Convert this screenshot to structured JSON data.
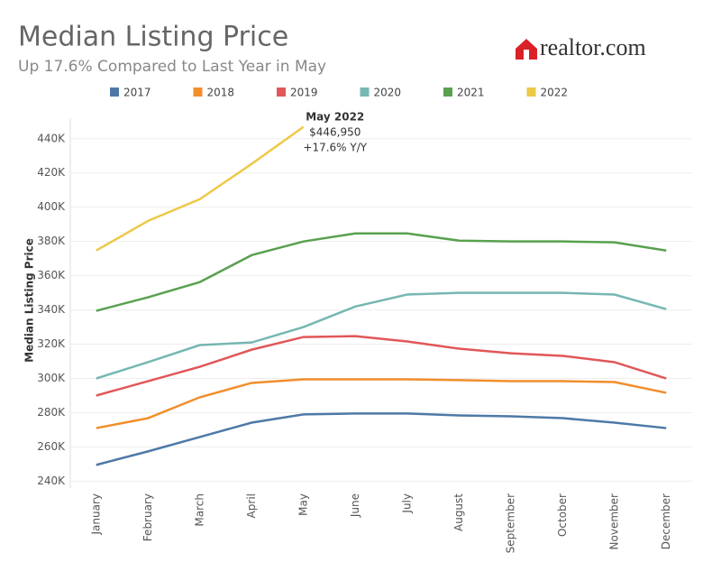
{
  "chart_data": {
    "type": "line",
    "title": "Median Listing Price",
    "subtitle": "Up 17.6% Compared to Last Year in May",
    "brand": "realtor.com",
    "y_label": "Median Listing Price",
    "categories": [
      "January",
      "February",
      "March",
      "April",
      "May",
      "June",
      "July",
      "August",
      "September",
      "October",
      "November",
      "December"
    ],
    "series": [
      {
        "name": "2017",
        "color": "#4e79a7",
        "values": [
          249500,
          257400,
          265800,
          274200,
          279000,
          279500,
          279500,
          278400,
          277900,
          276800,
          274200,
          271000
        ]
      },
      {
        "name": "2018",
        "color": "#f28e2b",
        "values": [
          271000,
          276800,
          289000,
          297400,
          299500,
          299500,
          299500,
          299000,
          298400,
          298400,
          297900,
          291600
        ]
      },
      {
        "name": "2019",
        "color": "#e15759",
        "values": [
          290000,
          298400,
          306800,
          316800,
          324200,
          324700,
          321600,
          317400,
          314700,
          313200,
          309500,
          300000
        ]
      },
      {
        "name": "2020",
        "color": "#76b7b2",
        "values": [
          300000,
          309500,
          319500,
          321000,
          330000,
          342000,
          349000,
          350000,
          350000,
          350000,
          349000,
          340500
        ]
      },
      {
        "name": "2021",
        "color": "#59a14f",
        "values": [
          339500,
          347400,
          356300,
          372000,
          380000,
          384700,
          384700,
          380500,
          380000,
          380000,
          379500,
          374700
        ]
      },
      {
        "name": "2022",
        "color": "#edc948",
        "values": [
          374700,
          392000,
          404700,
          425300,
          446950,
          null,
          null,
          null,
          null,
          null,
          null,
          null
        ]
      }
    ],
    "annotation": [
      "May 2022",
      "$446,950",
      "+17.6% Y/Y"
    ],
    "ylim": [
      236000,
      452000
    ],
    "yticks": [
      {
        "value": 240000,
        "label": "240K"
      },
      {
        "value": 260000,
        "label": "260K"
      },
      {
        "value": 280000,
        "label": "280K"
      },
      {
        "value": 300000,
        "label": "300K"
      },
      {
        "value": 320000,
        "label": "320K"
      },
      {
        "value": 340000,
        "label": "340K"
      },
      {
        "value": 360000,
        "label": "360K"
      },
      {
        "value": 380000,
        "label": "380K"
      },
      {
        "value": 400000,
        "label": "400K"
      },
      {
        "value": 420000,
        "label": "420K"
      },
      {
        "value": 440000,
        "label": "440K"
      }
    ],
    "grid": true
  }
}
